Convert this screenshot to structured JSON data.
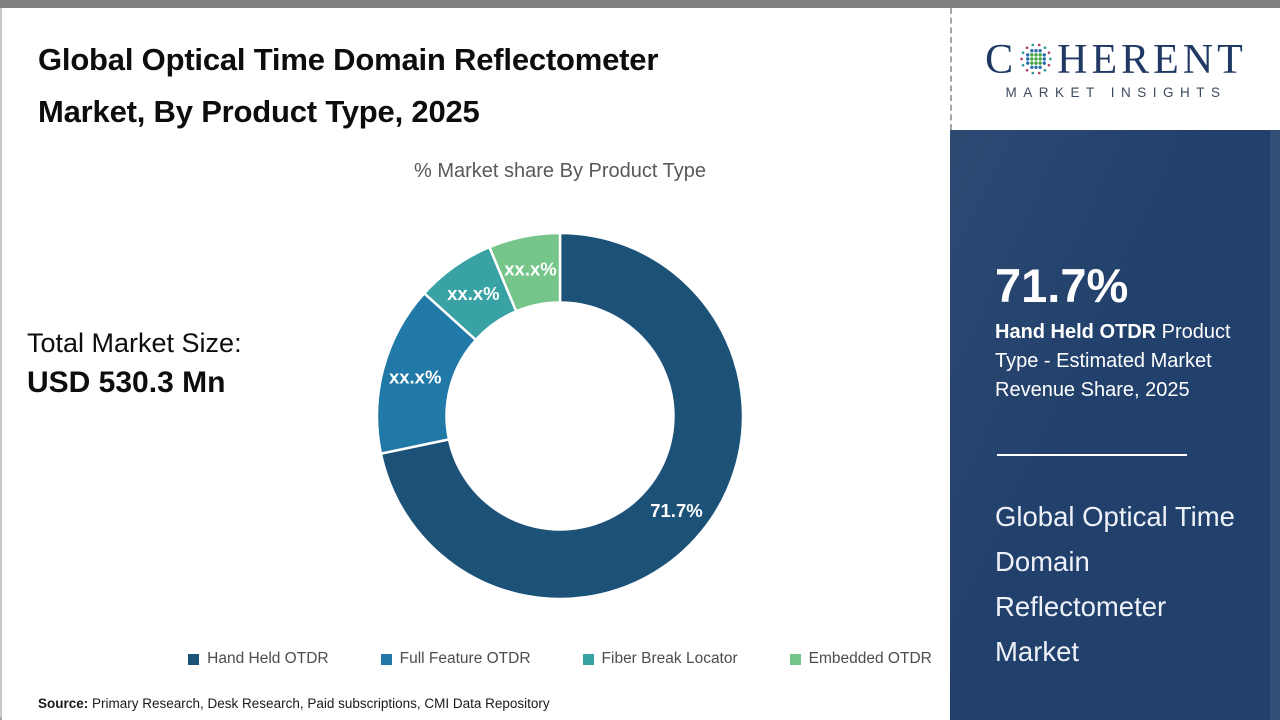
{
  "header": {
    "title_line1": "Global Optical Time Domain Reflectometer",
    "title_line2": "Market, By Product Type, 2025"
  },
  "chart_data": {
    "type": "pie",
    "subtype": "donut",
    "title": "% Market share By Product Type",
    "categories": [
      "Hand Held OTDR",
      "Full Feature OTDR",
      "Fiber Break Locator",
      "Embedded OTDR"
    ],
    "values": [
      71.7,
      15.0,
      7.0,
      6.3
    ],
    "labels": [
      "71.7%",
      "xx.x%",
      "xx.x%",
      "xx.x%"
    ],
    "colors": [
      "#1d5278",
      "#2179a8",
      "#38a2a4",
      "#76c68c"
    ],
    "start_angle": "12-oclock",
    "direction": "clockwise",
    "inner_radius_ratio": 0.62,
    "legend_position": "bottom"
  },
  "total_market": {
    "label": "Total Market Size:",
    "value": "USD 530.3 Mn"
  },
  "source": {
    "prefix": "Source:",
    "text": " Primary Research, Desk Research, Paid subscriptions, CMI Data Repository"
  },
  "logo": {
    "word_start": "C",
    "word_end": "HERENT",
    "subtitle": "MARKET INSIGHTS"
  },
  "sidebar": {
    "stat_value": "71.7%",
    "stat_label_bold": "Hand Held OTDR",
    "stat_label_rest": " Product Type - Estimated Market Revenue Share, 2025",
    "panel_title": "Global Optical Time Domain Reflectometer Market",
    "bg_color": "#21406b"
  }
}
